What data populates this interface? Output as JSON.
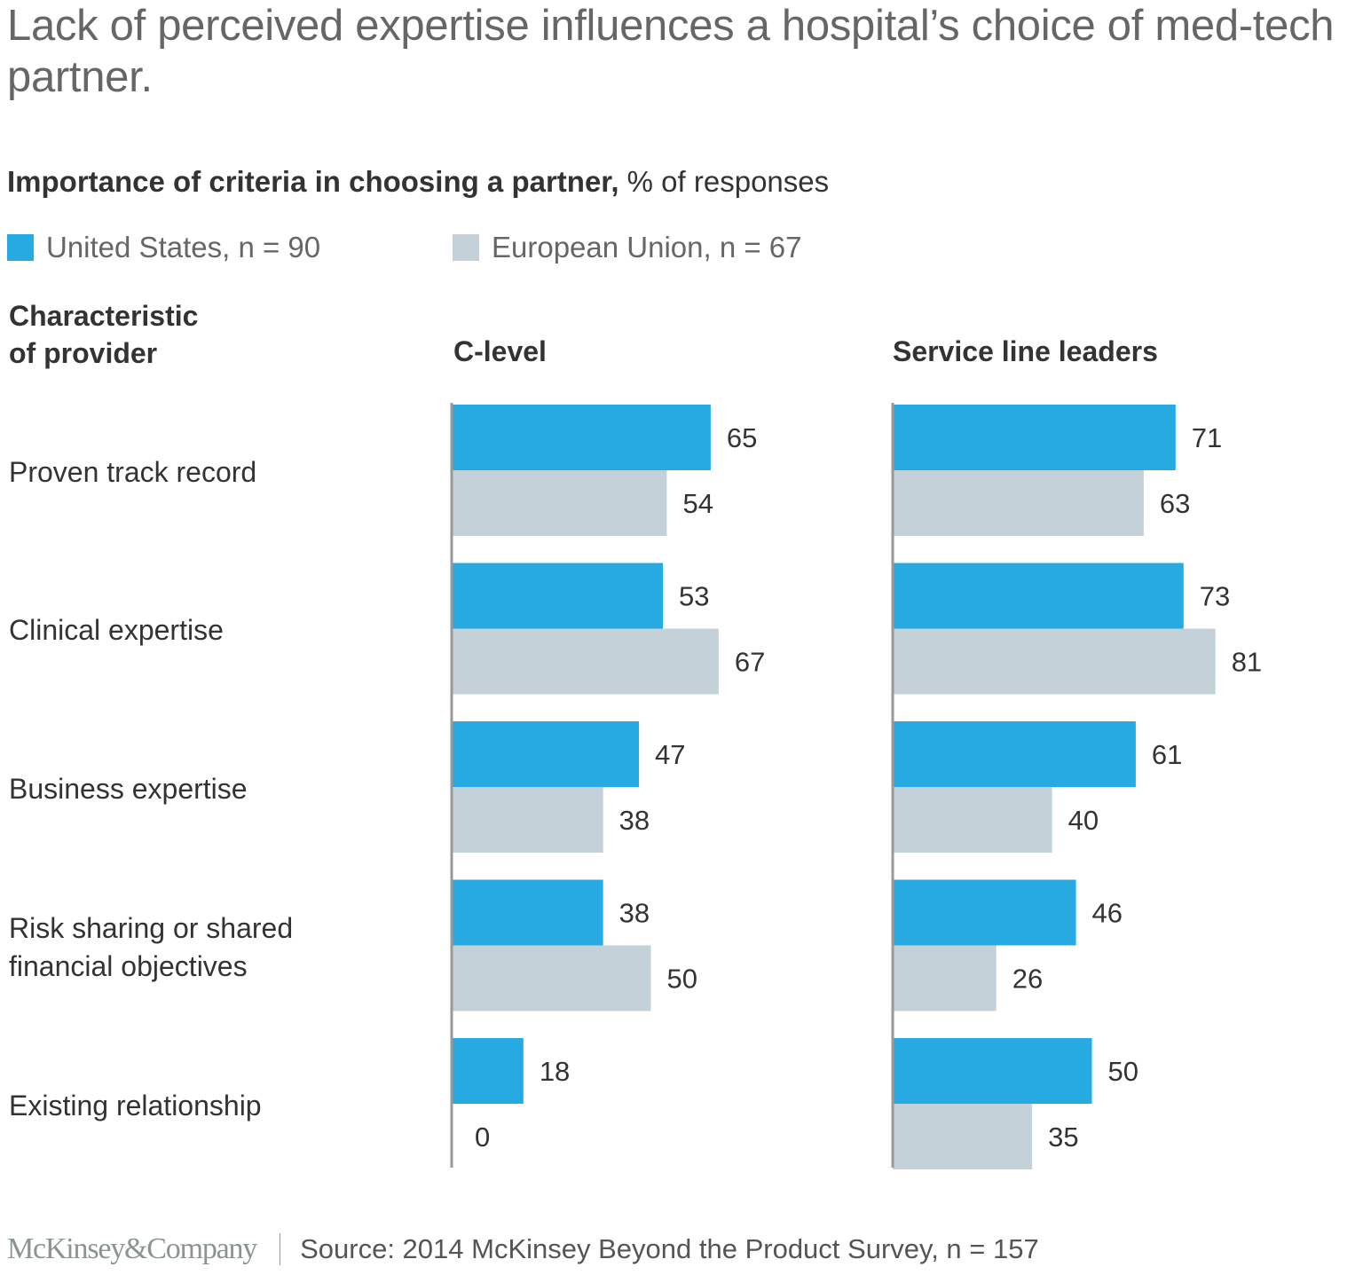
{
  "title": "Lack of perceived expertise influences a hospital’s choice of med-tech partner.",
  "subtitle": {
    "bold": "Importance of criteria in choosing a partner,",
    "regular": " % of responses"
  },
  "legend": [
    {
      "label": "United States, n = 90",
      "color": "#27A9E1"
    },
    {
      "label": "European Union, n = 67",
      "color": "#C4D1D8"
    }
  ],
  "row_header": [
    "Characteristic",
    "of provider"
  ],
  "footer": {
    "logo": "McKinsey&Company",
    "source": "Source: 2014 McKinsey Beyond the Product Survey, n = 157"
  },
  "chart_data": {
    "type": "bar",
    "orientation": "horizontal",
    "title": "Importance of criteria in choosing a partner, % of responses",
    "xlabel": "",
    "ylabel": "Characteristic of provider",
    "xlim": [
      0,
      100
    ],
    "grid": false,
    "legend_position": "top-left",
    "categories": [
      "Proven track record",
      "Clinical expertise",
      "Business expertise",
      "Risk sharing or shared financial objectives",
      "Existing relationship"
    ],
    "category_lines": [
      [
        "Proven track record"
      ],
      [
        "Clinical expertise"
      ],
      [
        "Business expertise"
      ],
      [
        "Risk sharing or shared",
        "financial objectives"
      ],
      [
        "Existing relationship"
      ]
    ],
    "panels": [
      {
        "title": "C-level",
        "series": [
          {
            "name": "United States, n = 90",
            "color": "#27A9E1",
            "values": [
              65,
              53,
              47,
              38,
              18
            ]
          },
          {
            "name": "European Union, n = 67",
            "color": "#C4D1D8",
            "values": [
              54,
              67,
              38,
              50,
              0
            ]
          }
        ]
      },
      {
        "title": "Service line leaders",
        "series": [
          {
            "name": "United States, n = 90",
            "color": "#27A9E1",
            "values": [
              71,
              73,
              61,
              46,
              50
            ]
          },
          {
            "name": "European Union, n = 67",
            "color": "#C4D1D8",
            "values": [
              63,
              81,
              40,
              26,
              35
            ]
          }
        ]
      }
    ]
  }
}
